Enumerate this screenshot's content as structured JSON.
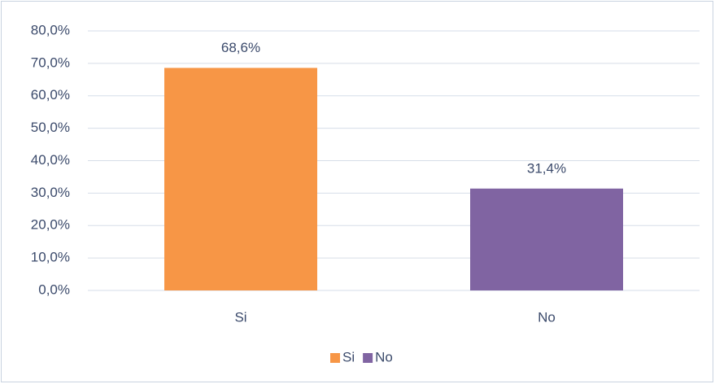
{
  "chart_data": {
    "type": "bar",
    "categories": [
      "Si",
      "No"
    ],
    "values": [
      68.6,
      31.4
    ],
    "value_labels": [
      "68,6%",
      "31,4%"
    ],
    "colors": [
      "#f79646",
      "#8064a2"
    ],
    "ylim": [
      0,
      80
    ],
    "yticks": [
      {
        "value": 0,
        "label": "0,0%"
      },
      {
        "value": 10,
        "label": "10,0%"
      },
      {
        "value": 20,
        "label": "20,0%"
      },
      {
        "value": 30,
        "label": "30,0%"
      },
      {
        "value": 40,
        "label": "40,0%"
      },
      {
        "value": 50,
        "label": "50,0%"
      },
      {
        "value": 60,
        "label": "60,0%"
      },
      {
        "value": 70,
        "label": "70,0%"
      },
      {
        "value": 80,
        "label": "80,0%"
      }
    ],
    "grid": true,
    "legend": "bottom"
  }
}
